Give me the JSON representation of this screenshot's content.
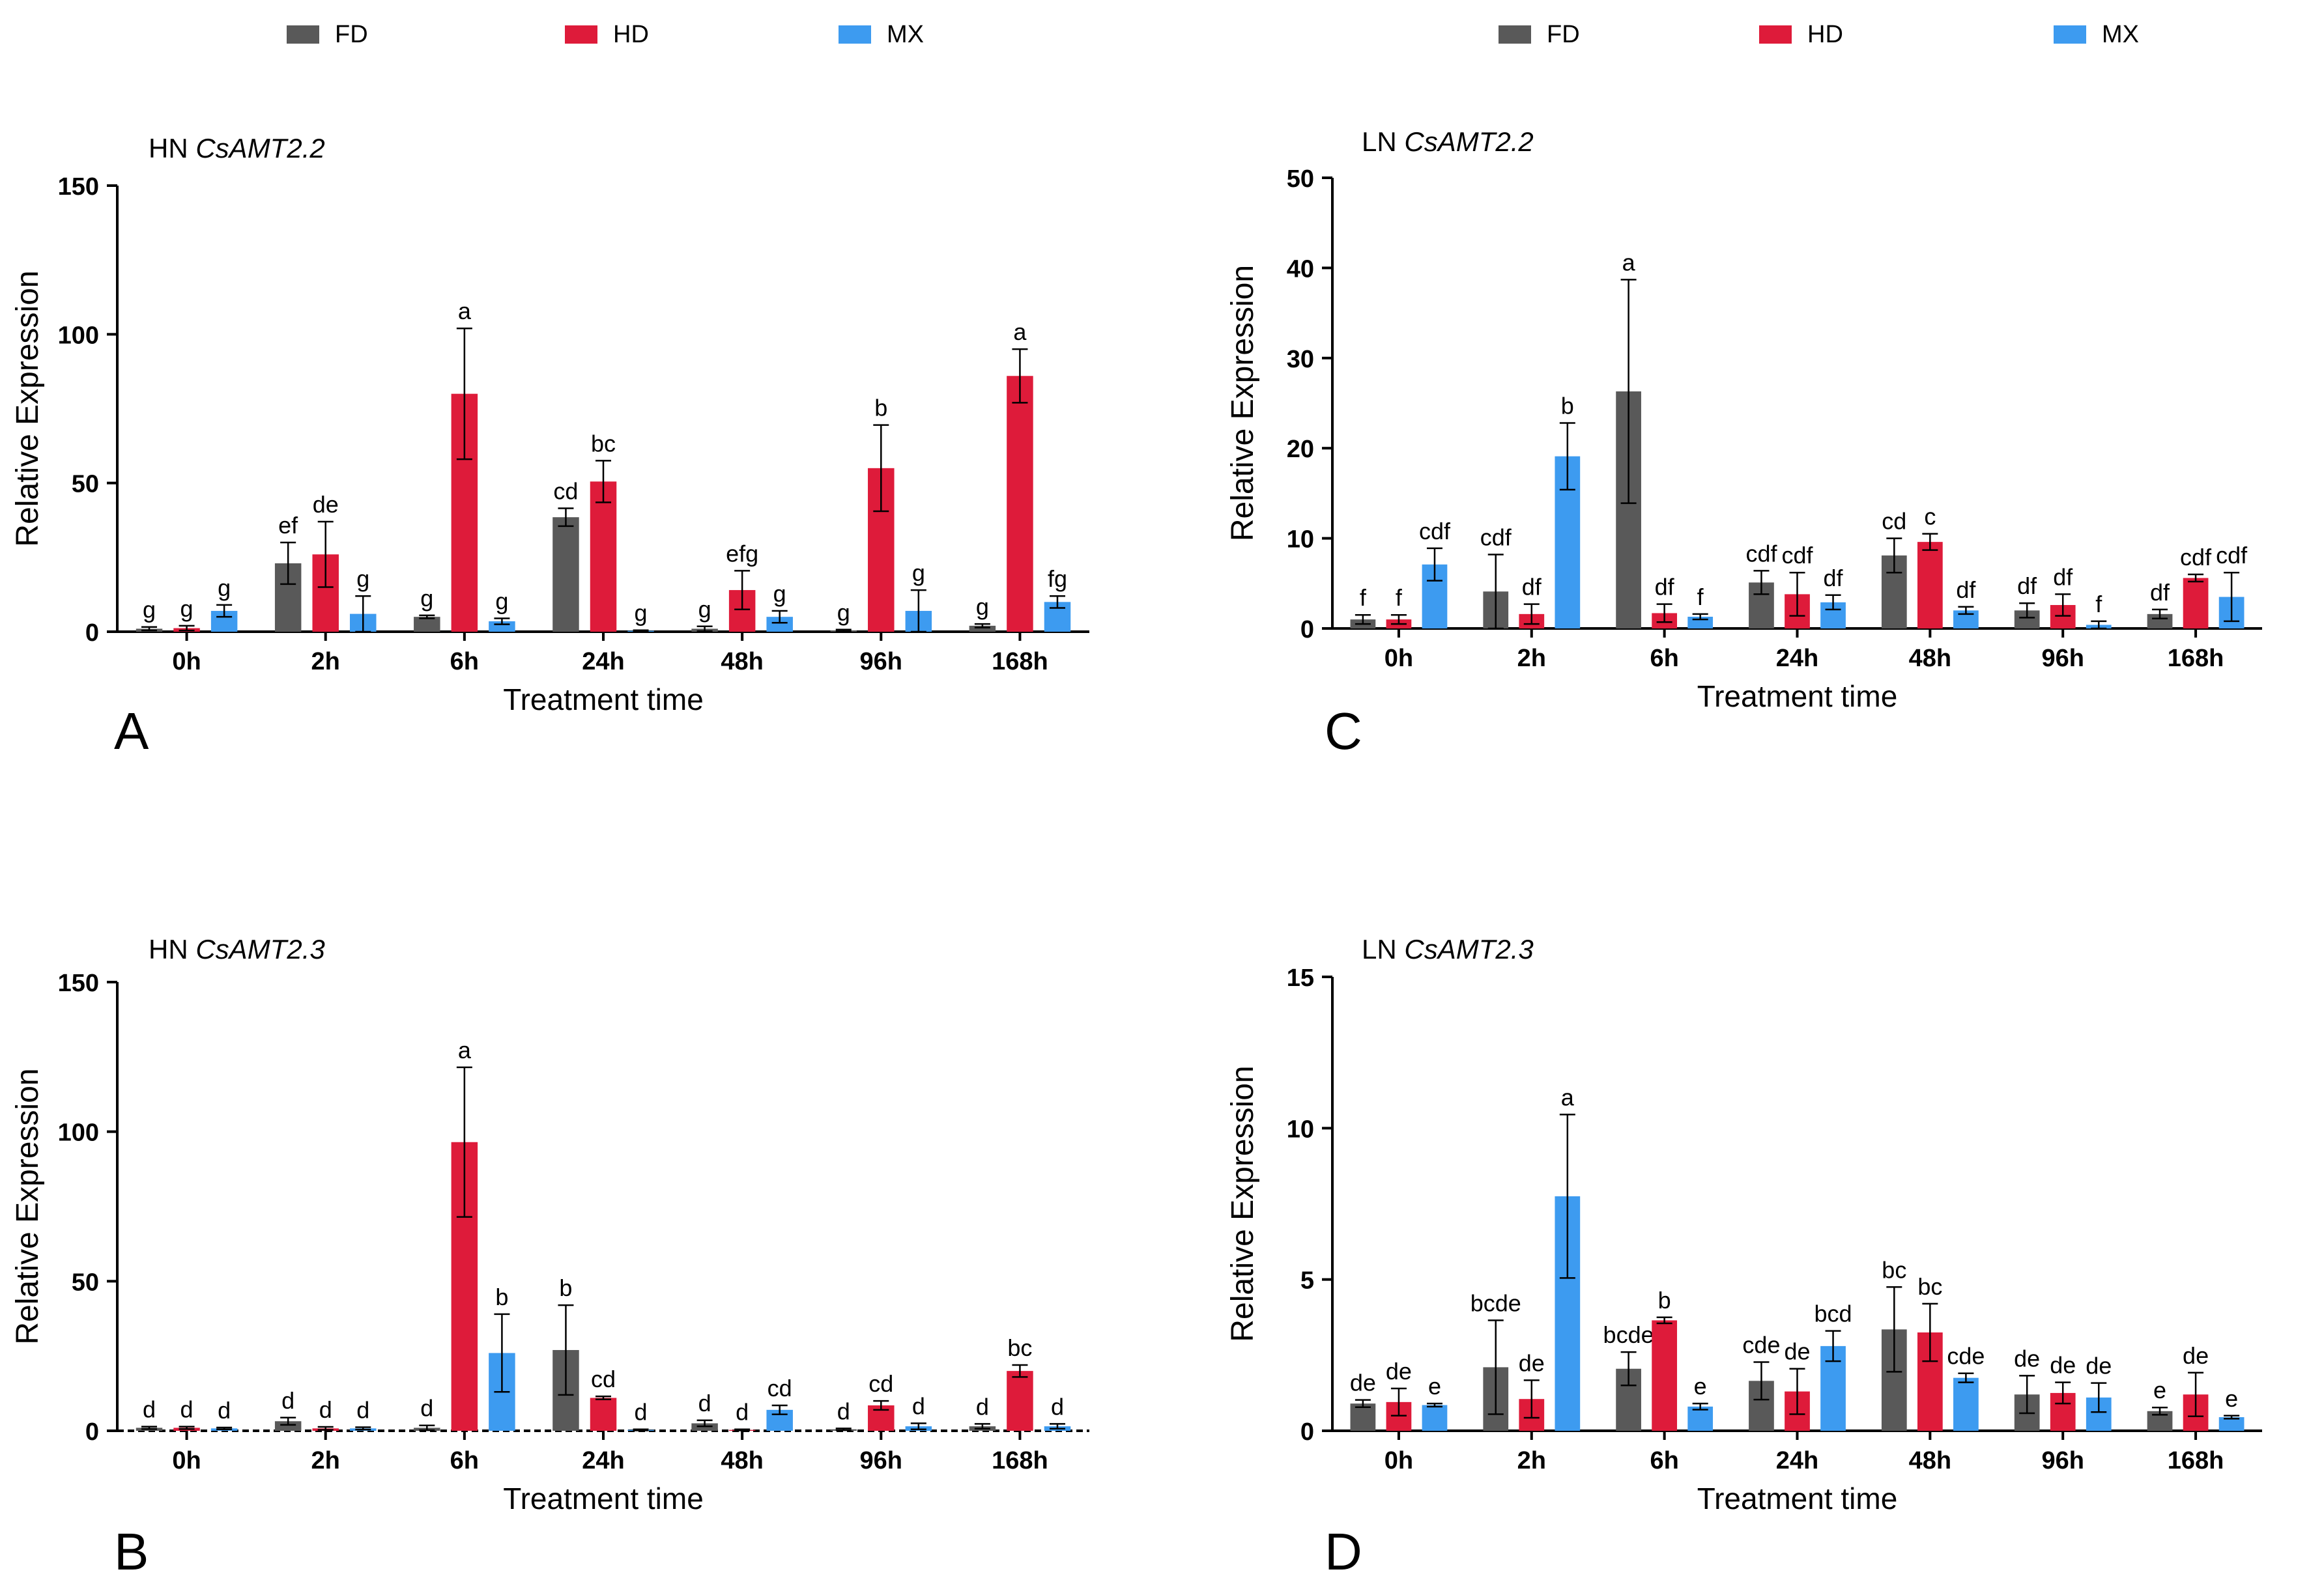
{
  "legend": {
    "items": [
      {
        "name": "FD",
        "color": "#595959"
      },
      {
        "name": "HD",
        "color": "#de1b3a"
      },
      {
        "name": "MX",
        "color": "#3d9bf0"
      }
    ]
  },
  "chart_data": [
    {
      "type": "bar",
      "panel_label": "A",
      "title_prefix": "HN",
      "title_gene": "CsAMT2.2",
      "xlabel": "Treatment  time",
      "ylabel": "Relative Expression",
      "ylim": [
        0,
        150
      ],
      "yticks": [
        0,
        50,
        100,
        150
      ],
      "categories": [
        "0h",
        "2h",
        "6h",
        "24h",
        "48h",
        "96h",
        "168h"
      ],
      "series": [
        {
          "name": "FD",
          "values": [
            1.0,
            23,
            5,
            38.5,
            1.0,
            0.4,
            2.0
          ],
          "errors": [
            0.6,
            7,
            0.5,
            3,
            0.8,
            0.3,
            0.6
          ],
          "letters": [
            "g",
            "ef",
            "g",
            "cd",
            "g",
            "g",
            "g"
          ]
        },
        {
          "name": "HD",
          "values": [
            1.2,
            26,
            80,
            50.5,
            14,
            55,
            86
          ],
          "errors": [
            0.8,
            11,
            22,
            7,
            6.5,
            14.5,
            9
          ],
          "letters": [
            "g",
            "de",
            "a",
            "bc",
            "efg",
            "b",
            "a"
          ]
        },
        {
          "name": "MX",
          "values": [
            7,
            6,
            3.5,
            0.3,
            5,
            7,
            10
          ],
          "errors": [
            2,
            6,
            1,
            0.2,
            2,
            7,
            2
          ],
          "letters": [
            "g",
            "g",
            "g",
            "g",
            "g",
            "g",
            "fg"
          ]
        }
      ]
    },
    {
      "type": "bar",
      "panel_label": "C",
      "title_prefix": "LN",
      "title_gene": "CsAMT2.2",
      "xlabel": "Treatment  time",
      "ylabel": "Relative Expression",
      "ylim": [
        0,
        50
      ],
      "yticks": [
        0,
        10,
        20,
        30,
        40,
        50
      ],
      "categories": [
        "0h",
        "2h",
        "6h",
        "24h",
        "48h",
        "96h",
        "168h"
      ],
      "series": [
        {
          "name": "FD",
          "values": [
            1.0,
            4.1,
            26.3,
            5.1,
            8.1,
            2.0,
            1.6
          ],
          "errors": [
            0.5,
            4.1,
            12.4,
            1.3,
            1.9,
            0.8,
            0.5
          ],
          "letters": [
            "f",
            "cdf",
            "a",
            "cdf",
            "cd",
            "df",
            "df"
          ]
        },
        {
          "name": "HD",
          "values": [
            1.0,
            1.6,
            1.7,
            3.8,
            9.6,
            2.6,
            5.6
          ],
          "errors": [
            0.5,
            1.1,
            1.0,
            2.4,
            0.9,
            1.2,
            0.4
          ],
          "letters": [
            "f",
            "df",
            "df",
            "cdf",
            "c",
            "df",
            "cdf"
          ]
        },
        {
          "name": "MX",
          "values": [
            7.1,
            19.1,
            1.3,
            2.9,
            2.0,
            0.4,
            3.5
          ],
          "errors": [
            1.8,
            3.7,
            0.3,
            0.8,
            0.4,
            0.4,
            2.7
          ],
          "letters": [
            "cdf",
            "b",
            "f",
            "df",
            "df",
            "f",
            "cdf"
          ]
        }
      ]
    },
    {
      "type": "bar",
      "panel_label": "B",
      "title_prefix": "HN",
      "title_gene": "CsAMT2.3",
      "xlabel": "Treatment  time",
      "ylabel": "Relative Expression",
      "ylim": [
        0,
        150
      ],
      "yticks": [
        0,
        50,
        100,
        150
      ],
      "categories": [
        "0h",
        "2h",
        "6h",
        "24h",
        "48h",
        "96h",
        "168h"
      ],
      "series": [
        {
          "name": "FD",
          "values": [
            1.0,
            3.2,
            1.0,
            27,
            2.5,
            0.5,
            1.5
          ],
          "errors": [
            0.4,
            1.2,
            0.8,
            15,
            1,
            0.3,
            0.8
          ],
          "letters": [
            "d",
            "d",
            "d",
            "b",
            "d",
            "d",
            "d"
          ]
        },
        {
          "name": "HD",
          "values": [
            1.0,
            0.8,
            96.5,
            11,
            0.3,
            8.5,
            20
          ],
          "errors": [
            0.4,
            0.5,
            25,
            0.5,
            0.2,
            1.5,
            2
          ],
          "letters": [
            "d",
            "d",
            "a",
            "cd",
            "d",
            "cd",
            "bc"
          ]
        },
        {
          "name": "MX",
          "values": [
            0.8,
            0.8,
            26,
            0.3,
            7,
            1.5,
            1.5
          ],
          "errors": [
            0.3,
            0.4,
            13,
            0.2,
            1.5,
            1,
            0.8
          ],
          "letters": [
            "d",
            "d",
            "b",
            "d",
            "cd",
            "d",
            "d"
          ]
        }
      ]
    },
    {
      "type": "bar",
      "panel_label": "D",
      "title_prefix": "LN",
      "title_gene": "CsAMT2.3",
      "xlabel": "Treatment  time",
      "ylabel": "Relative Expression",
      "ylim": [
        0,
        15
      ],
      "yticks": [
        0,
        5,
        10,
        15
      ],
      "categories": [
        "0h",
        "2h",
        "6h",
        "24h",
        "48h",
        "96h",
        "168h"
      ],
      "series": [
        {
          "name": "FD",
          "values": [
            0.9,
            2.1,
            2.05,
            1.65,
            3.35,
            1.2,
            0.65
          ],
          "errors": [
            0.12,
            1.55,
            0.55,
            0.62,
            1.4,
            0.62,
            0.12
          ],
          "letters": [
            "de",
            "bcde",
            "bcde",
            "cde",
            "bc",
            "de",
            "e"
          ]
        },
        {
          "name": "HD",
          "values": [
            0.95,
            1.05,
            3.65,
            1.3,
            3.25,
            1.25,
            1.2
          ],
          "errors": [
            0.45,
            0.62,
            0.1,
            0.75,
            0.95,
            0.35,
            0.72
          ],
          "letters": [
            "de",
            "de",
            "b",
            "de",
            "bc",
            "de",
            "de"
          ]
        },
        {
          "name": "MX",
          "values": [
            0.85,
            7.75,
            0.8,
            2.8,
            1.75,
            1.1,
            0.45
          ],
          "errors": [
            0.05,
            2.7,
            0.1,
            0.5,
            0.15,
            0.48,
            0.05
          ],
          "letters": [
            "e",
            "a",
            "e",
            "bcd",
            "cde",
            "de",
            "e"
          ]
        }
      ]
    }
  ]
}
